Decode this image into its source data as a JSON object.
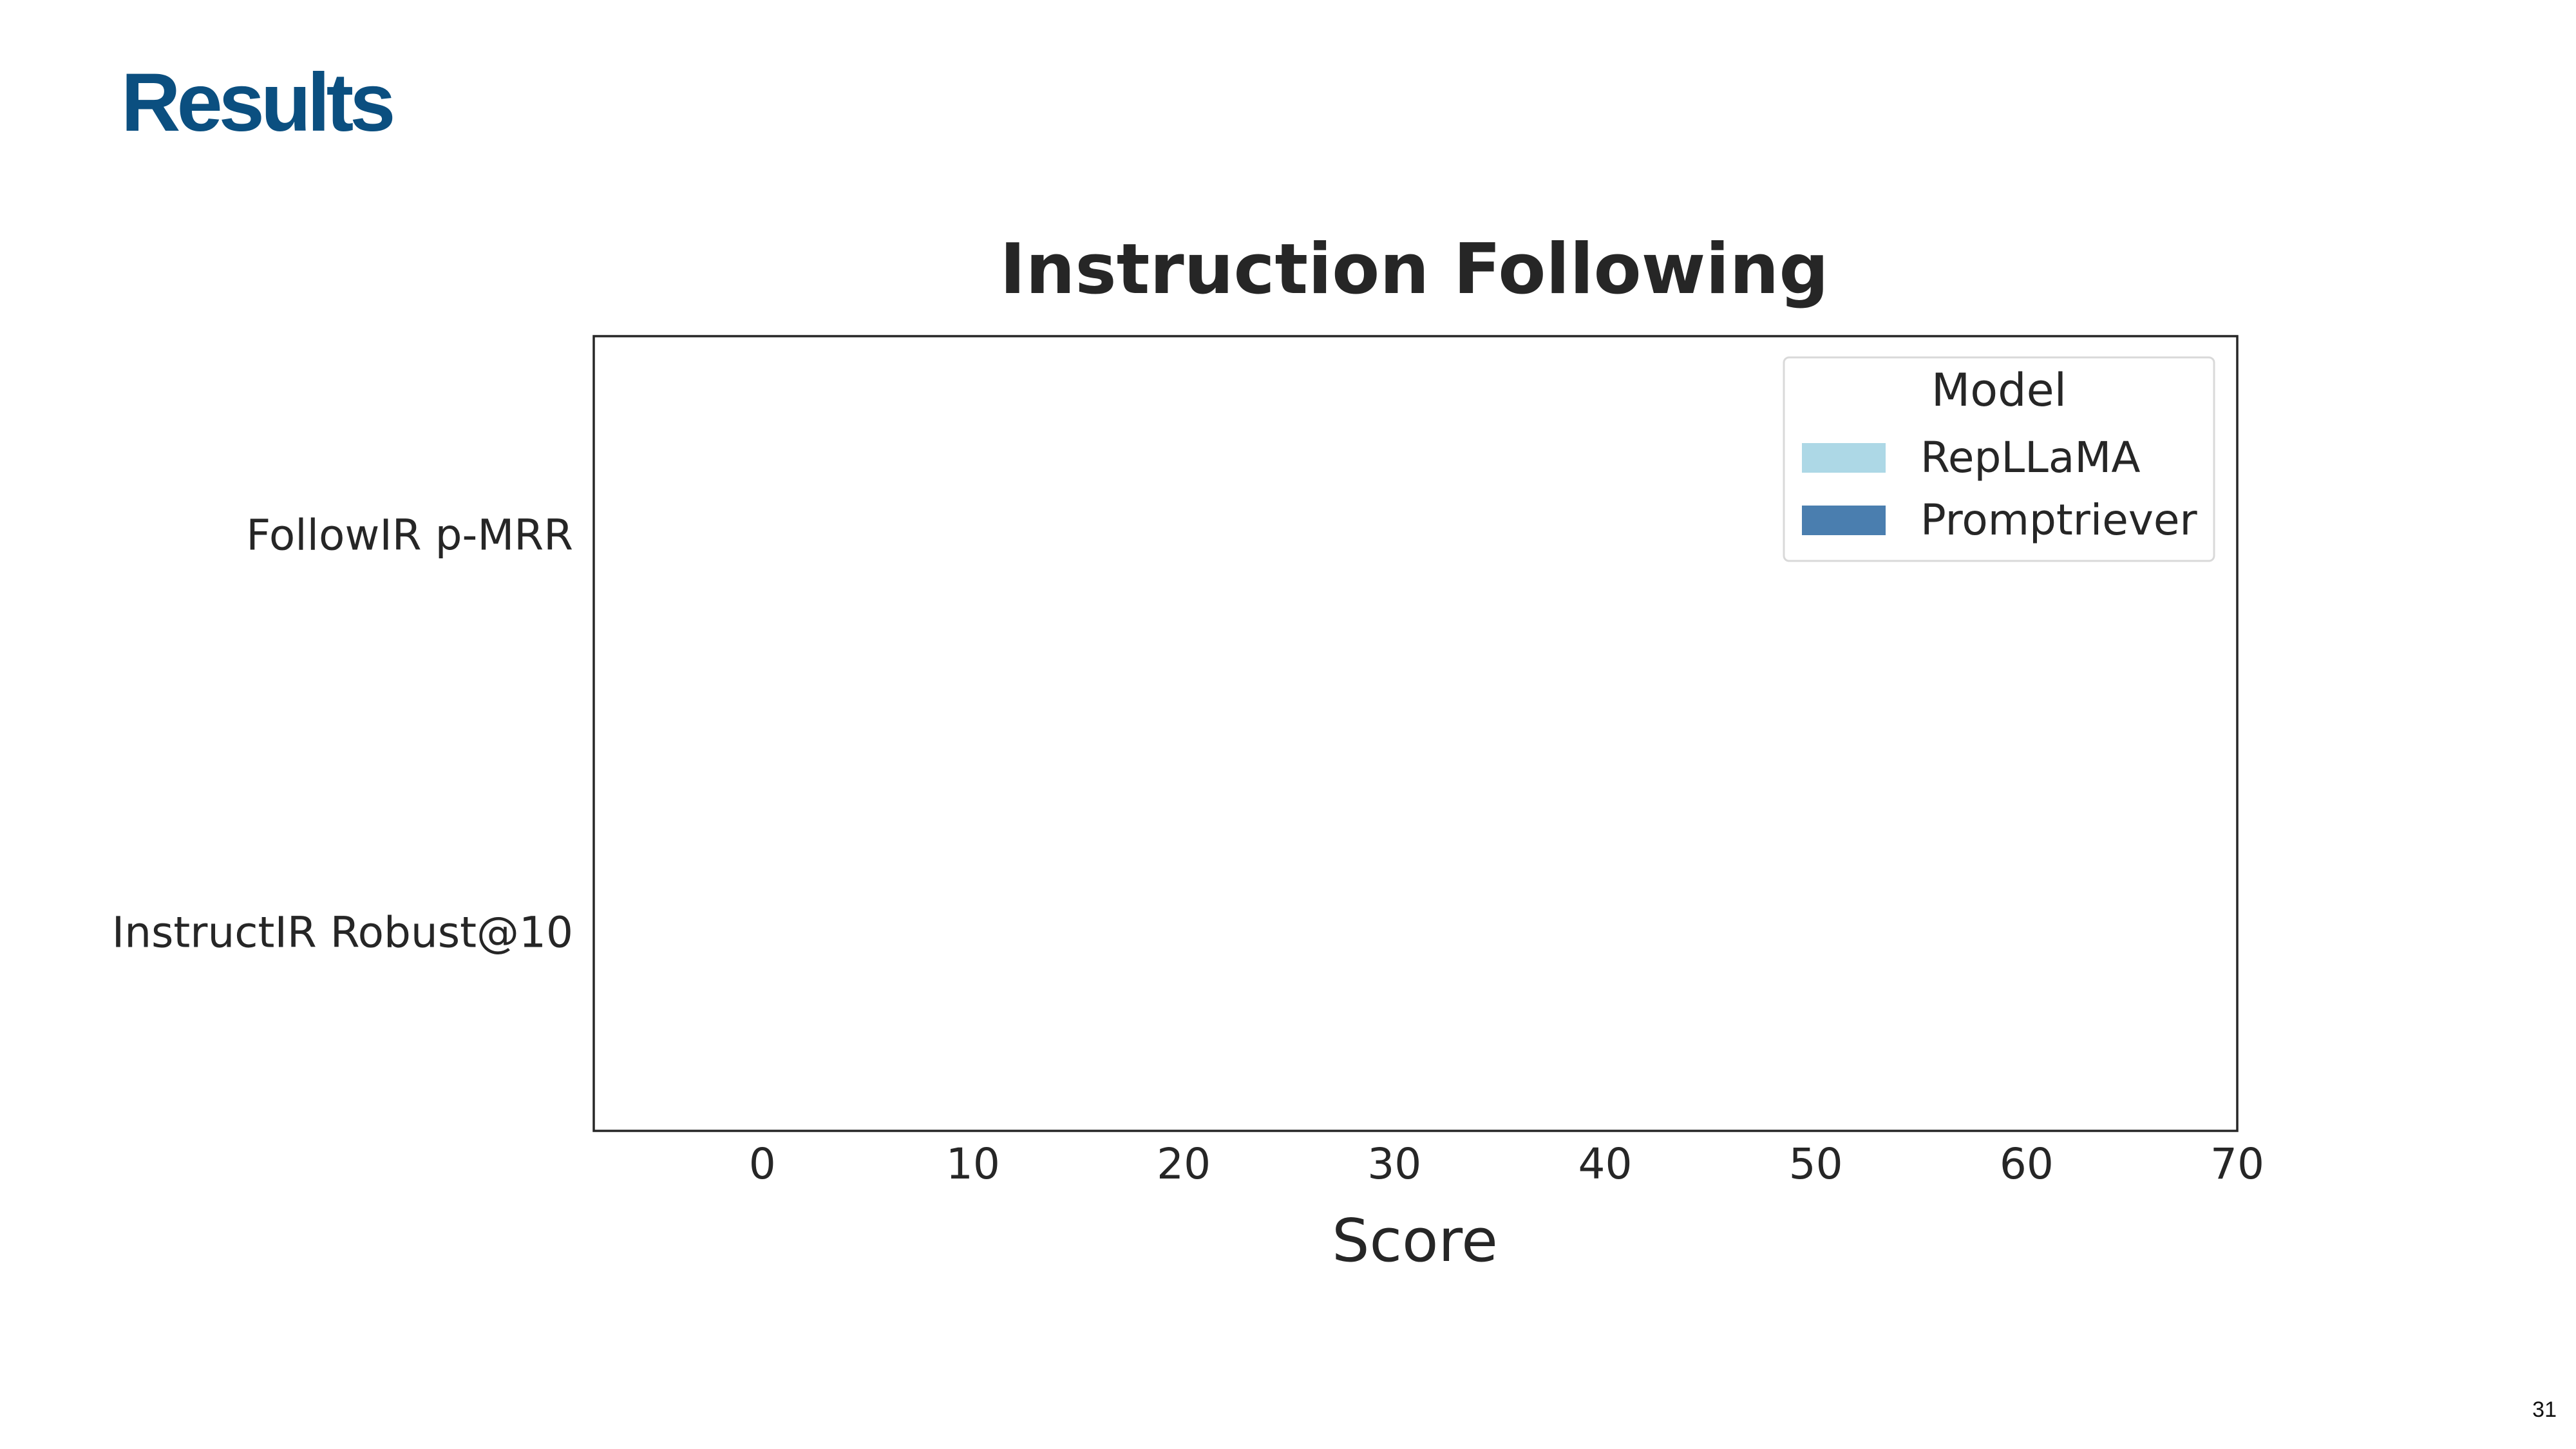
{
  "slide": {
    "title": "Results",
    "page_number": "31",
    "title_color": "#0b4f80"
  },
  "chart_data": {
    "type": "bar",
    "orientation": "horizontal",
    "title": "Instruction Following",
    "xlabel": "Score",
    "ylabel": "",
    "categories": [
      "FollowIR p-MRR",
      "InstructIR Robust@10"
    ],
    "xlim": [
      -8,
      70
    ],
    "xticks": [
      0,
      10,
      20,
      30,
      40,
      50,
      60,
      70
    ],
    "grid": false,
    "legend": {
      "title": "Model",
      "placement": "top-right"
    },
    "series": [
      {
        "name": "RepLLaMA",
        "color": "#add8e6",
        "values": [
          null,
          null
        ]
      },
      {
        "name": "Promptriever",
        "color": "#4a7eaf",
        "values": [
          null,
          null
        ]
      }
    ],
    "colors": {
      "text": "#262626",
      "frame": "#262626"
    }
  }
}
